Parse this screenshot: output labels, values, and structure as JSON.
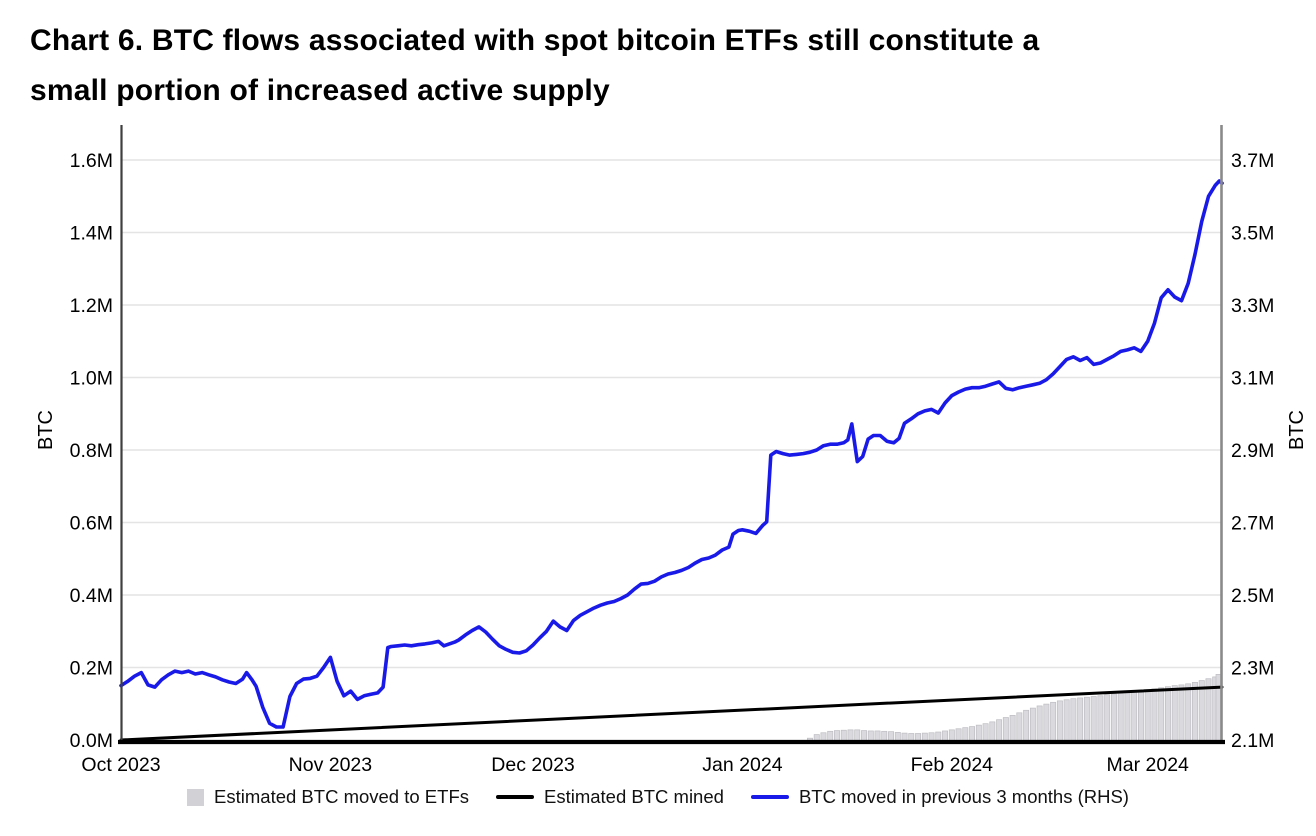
{
  "title": {
    "line1": "Chart 6. BTC flows associated with spot bitcoin ETFs still constitute a",
    "line2": "small portion of increased active supply"
  },
  "legend": {
    "items": [
      {
        "label": "Estimated BTC moved to ETFs",
        "swatch": "square",
        "color": "#d2d2d6"
      },
      {
        "label": "Estimated BTC mined",
        "swatch": "line",
        "color": "#000000"
      },
      {
        "label": "BTC moved in previous 3 months (RHS)",
        "swatch": "line",
        "color": "#1a1ae8"
      }
    ]
  },
  "chart_data": {
    "type": "line+bar",
    "title": "Chart 6. BTC flows associated with spot bitcoin ETFs still constitute a small portion of increased active supply",
    "grid": "horizontal",
    "gridline_color": "#e4e4e4",
    "background": "#ffffff",
    "x_axis": {
      "unit": "days since 1 Oct 2023",
      "range_days": [
        0,
        163
      ],
      "ticks": [
        {
          "day": 0,
          "label": "Oct 2023"
        },
        {
          "day": 31,
          "label": "Nov 2023"
        },
        {
          "day": 61,
          "label": "Dec 2023"
        },
        {
          "day": 92,
          "label": "Jan 2024"
        },
        {
          "day": 123,
          "label": "Feb 2024"
        },
        {
          "day": 152,
          "label": "Mar 2024"
        }
      ]
    },
    "y_axis_left": {
      "label": "BTC",
      "range": [
        0,
        1.7
      ],
      "tick_values": [
        0.0,
        0.2,
        0.4,
        0.6,
        0.8,
        1.0,
        1.2,
        1.4,
        1.6
      ],
      "tick_labels": [
        "0.0M",
        "0.2M",
        "0.4M",
        "0.6M",
        "0.8M",
        "1.0M",
        "1.2M",
        "1.4M",
        "1.6M"
      ]
    },
    "y_axis_right": {
      "label": "BTC",
      "range": [
        2.1,
        3.8
      ],
      "tick_values": [
        2.1,
        2.3,
        2.5,
        2.7,
        2.9,
        3.1,
        3.3,
        3.5,
        3.7
      ],
      "tick_labels": [
        "2.1M",
        "2.3M",
        "2.5M",
        "2.7M",
        "2.9M",
        "3.1M",
        "3.3M",
        "3.5M",
        "3.7M"
      ]
    },
    "series": [
      {
        "name": "Estimated BTC moved to ETFs",
        "type": "bar",
        "axis": "left",
        "color": "#dadade",
        "edge_color": "#bdbdc2",
        "points": [
          [
            102,
            0.005
          ],
          [
            103,
            0.015
          ],
          [
            104,
            0.02
          ],
          [
            105,
            0.024
          ],
          [
            106,
            0.026
          ],
          [
            107,
            0.027
          ],
          [
            108,
            0.028
          ],
          [
            109,
            0.028
          ],
          [
            110,
            0.026
          ],
          [
            111,
            0.025
          ],
          [
            112,
            0.025
          ],
          [
            113,
            0.024
          ],
          [
            114,
            0.023
          ],
          [
            115,
            0.021
          ],
          [
            116,
            0.019
          ],
          [
            117,
            0.018
          ],
          [
            118,
            0.018
          ],
          [
            119,
            0.019
          ],
          [
            120,
            0.02
          ],
          [
            121,
            0.022
          ],
          [
            122,
            0.025
          ],
          [
            123,
            0.028
          ],
          [
            124,
            0.031
          ],
          [
            125,
            0.034
          ],
          [
            126,
            0.037
          ],
          [
            127,
            0.041
          ],
          [
            128,
            0.045
          ],
          [
            129,
            0.05
          ],
          [
            130,
            0.056
          ],
          [
            131,
            0.062
          ],
          [
            132,
            0.068
          ],
          [
            133,
            0.075
          ],
          [
            134,
            0.082
          ],
          [
            135,
            0.088
          ],
          [
            136,
            0.094
          ],
          [
            137,
            0.099
          ],
          [
            138,
            0.104
          ],
          [
            139,
            0.108
          ],
          [
            140,
            0.111
          ],
          [
            141,
            0.114
          ],
          [
            142,
            0.116
          ],
          [
            143,
            0.118
          ],
          [
            144,
            0.12
          ],
          [
            145,
            0.122
          ],
          [
            146,
            0.125
          ],
          [
            147,
            0.127
          ],
          [
            148,
            0.129
          ],
          [
            149,
            0.131
          ],
          [
            150,
            0.133
          ],
          [
            151,
            0.135
          ],
          [
            152,
            0.138
          ],
          [
            153,
            0.141
          ],
          [
            154,
            0.144
          ],
          [
            155,
            0.147
          ],
          [
            156,
            0.15
          ],
          [
            157,
            0.152
          ],
          [
            158,
            0.155
          ],
          [
            159,
            0.159
          ],
          [
            160,
            0.164
          ],
          [
            161,
            0.169
          ],
          [
            162,
            0.174
          ],
          [
            163,
            0.181
          ]
        ]
      },
      {
        "name": "Estimated BTC mined",
        "type": "line",
        "axis": "left",
        "color": "#000000",
        "width": 3,
        "points": [
          [
            0,
            0.0
          ],
          [
            163,
            0.146
          ]
        ]
      },
      {
        "name": "BTC moved in previous 3 months (RHS)",
        "type": "line",
        "axis": "right",
        "color": "#1a1ae8",
        "width": 3.6,
        "points": [
          [
            0,
            2.25
          ],
          [
            1,
            2.262
          ],
          [
            2,
            2.276
          ],
          [
            3,
            2.286
          ],
          [
            4,
            2.252
          ],
          [
            5,
            2.246
          ],
          [
            6,
            2.266
          ],
          [
            7,
            2.28
          ],
          [
            8,
            2.29
          ],
          [
            9,
            2.286
          ],
          [
            10,
            2.29
          ],
          [
            11,
            2.282
          ],
          [
            12,
            2.286
          ],
          [
            13,
            2.28
          ],
          [
            14,
            2.274
          ],
          [
            15,
            2.266
          ],
          [
            16,
            2.26
          ],
          [
            17,
            2.256
          ],
          [
            18,
            2.268
          ],
          [
            18.6,
            2.286
          ],
          [
            19.4,
            2.266
          ],
          [
            20,
            2.248
          ],
          [
            21,
            2.19
          ],
          [
            22,
            2.146
          ],
          [
            23,
            2.136
          ],
          [
            24,
            2.136
          ],
          [
            25,
            2.22
          ],
          [
            26,
            2.256
          ],
          [
            27,
            2.268
          ],
          [
            28,
            2.27
          ],
          [
            29,
            2.276
          ],
          [
            30,
            2.3
          ],
          [
            31,
            2.328
          ],
          [
            32,
            2.262
          ],
          [
            33,
            2.222
          ],
          [
            34,
            2.235
          ],
          [
            35,
            2.212
          ],
          [
            36,
            2.222
          ],
          [
            37,
            2.226
          ],
          [
            38,
            2.23
          ],
          [
            38.8,
            2.246
          ],
          [
            39.5,
            2.355
          ],
          [
            40,
            2.358
          ],
          [
            41,
            2.36
          ],
          [
            42,
            2.362
          ],
          [
            43,
            2.36
          ],
          [
            44,
            2.363
          ],
          [
            45,
            2.365
          ],
          [
            46,
            2.368
          ],
          [
            47,
            2.372
          ],
          [
            47.8,
            2.36
          ],
          [
            48.6,
            2.365
          ],
          [
            49.4,
            2.37
          ],
          [
            50,
            2.376
          ],
          [
            51,
            2.39
          ],
          [
            52,
            2.402
          ],
          [
            53,
            2.412
          ],
          [
            54,
            2.398
          ],
          [
            55,
            2.378
          ],
          [
            56,
            2.36
          ],
          [
            57,
            2.35
          ],
          [
            58,
            2.342
          ],
          [
            59,
            2.34
          ],
          [
            60,
            2.346
          ],
          [
            61,
            2.362
          ],
          [
            62,
            2.382
          ],
          [
            63,
            2.4
          ],
          [
            64,
            2.428
          ],
          [
            65,
            2.412
          ],
          [
            66,
            2.402
          ],
          [
            67,
            2.43
          ],
          [
            68,
            2.444
          ],
          [
            69,
            2.454
          ],
          [
            70,
            2.464
          ],
          [
            71,
            2.472
          ],
          [
            72,
            2.478
          ],
          [
            73,
            2.482
          ],
          [
            74,
            2.49
          ],
          [
            75,
            2.5
          ],
          [
            76,
            2.516
          ],
          [
            77,
            2.53
          ],
          [
            78,
            2.532
          ],
          [
            79,
            2.538
          ],
          [
            80,
            2.55
          ],
          [
            81,
            2.558
          ],
          [
            82,
            2.562
          ],
          [
            83,
            2.568
          ],
          [
            84,
            2.576
          ],
          [
            85,
            2.588
          ],
          [
            86,
            2.598
          ],
          [
            87,
            2.602
          ],
          [
            88,
            2.61
          ],
          [
            89,
            2.624
          ],
          [
            90,
            2.632
          ],
          [
            90.6,
            2.668
          ],
          [
            91.4,
            2.678
          ],
          [
            92,
            2.68
          ],
          [
            93,
            2.676
          ],
          [
            94,
            2.67
          ],
          [
            95,
            2.692
          ],
          [
            95.6,
            2.702
          ],
          [
            96.2,
            2.886
          ],
          [
            97,
            2.896
          ],
          [
            98,
            2.89
          ],
          [
            99,
            2.886
          ],
          [
            100,
            2.888
          ],
          [
            101,
            2.89
          ],
          [
            102,
            2.894
          ],
          [
            103,
            2.9
          ],
          [
            104,
            2.912
          ],
          [
            105,
            2.916
          ],
          [
            106,
            2.916
          ],
          [
            107,
            2.92
          ],
          [
            107.6,
            2.928
          ],
          [
            108.2,
            2.972
          ],
          [
            109,
            2.868
          ],
          [
            109.8,
            2.882
          ],
          [
            110.6,
            2.93
          ],
          [
            111.4,
            2.94
          ],
          [
            112.4,
            2.94
          ],
          [
            113.4,
            2.924
          ],
          [
            114.4,
            2.92
          ],
          [
            115.2,
            2.932
          ],
          [
            116,
            2.974
          ],
          [
            117,
            2.986
          ],
          [
            118,
            3.0
          ],
          [
            119,
            3.008
          ],
          [
            120,
            3.012
          ],
          [
            121,
            3.002
          ],
          [
            122,
            3.03
          ],
          [
            123,
            3.05
          ],
          [
            124,
            3.06
          ],
          [
            125,
            3.068
          ],
          [
            126,
            3.072
          ],
          [
            127,
            3.072
          ],
          [
            128,
            3.076
          ],
          [
            129,
            3.082
          ],
          [
            130,
            3.088
          ],
          [
            131,
            3.07
          ],
          [
            132,
            3.066
          ],
          [
            133,
            3.072
          ],
          [
            134,
            3.076
          ],
          [
            135,
            3.08
          ],
          [
            136,
            3.084
          ],
          [
            137,
            3.094
          ],
          [
            138,
            3.11
          ],
          [
            139,
            3.13
          ],
          [
            140,
            3.15
          ],
          [
            141,
            3.157
          ],
          [
            142,
            3.147
          ],
          [
            143,
            3.155
          ],
          [
            144,
            3.136
          ],
          [
            145,
            3.14
          ],
          [
            146,
            3.15
          ],
          [
            147,
            3.16
          ],
          [
            148,
            3.172
          ],
          [
            149,
            3.176
          ],
          [
            150,
            3.182
          ],
          [
            151,
            3.172
          ],
          [
            152,
            3.2
          ],
          [
            153,
            3.25
          ],
          [
            154,
            3.32
          ],
          [
            155,
            3.342
          ],
          [
            156,
            3.322
          ],
          [
            157,
            3.312
          ],
          [
            158,
            3.36
          ],
          [
            159,
            3.44
          ],
          [
            160,
            3.53
          ],
          [
            161,
            3.6
          ],
          [
            162,
            3.63
          ],
          [
            162.6,
            3.642
          ],
          [
            163,
            3.636
          ]
        ]
      }
    ],
    "spines": {
      "left_color": "#3f3f3f",
      "bottom_color": "#000000",
      "right_color": "#8a8a8a"
    }
  }
}
